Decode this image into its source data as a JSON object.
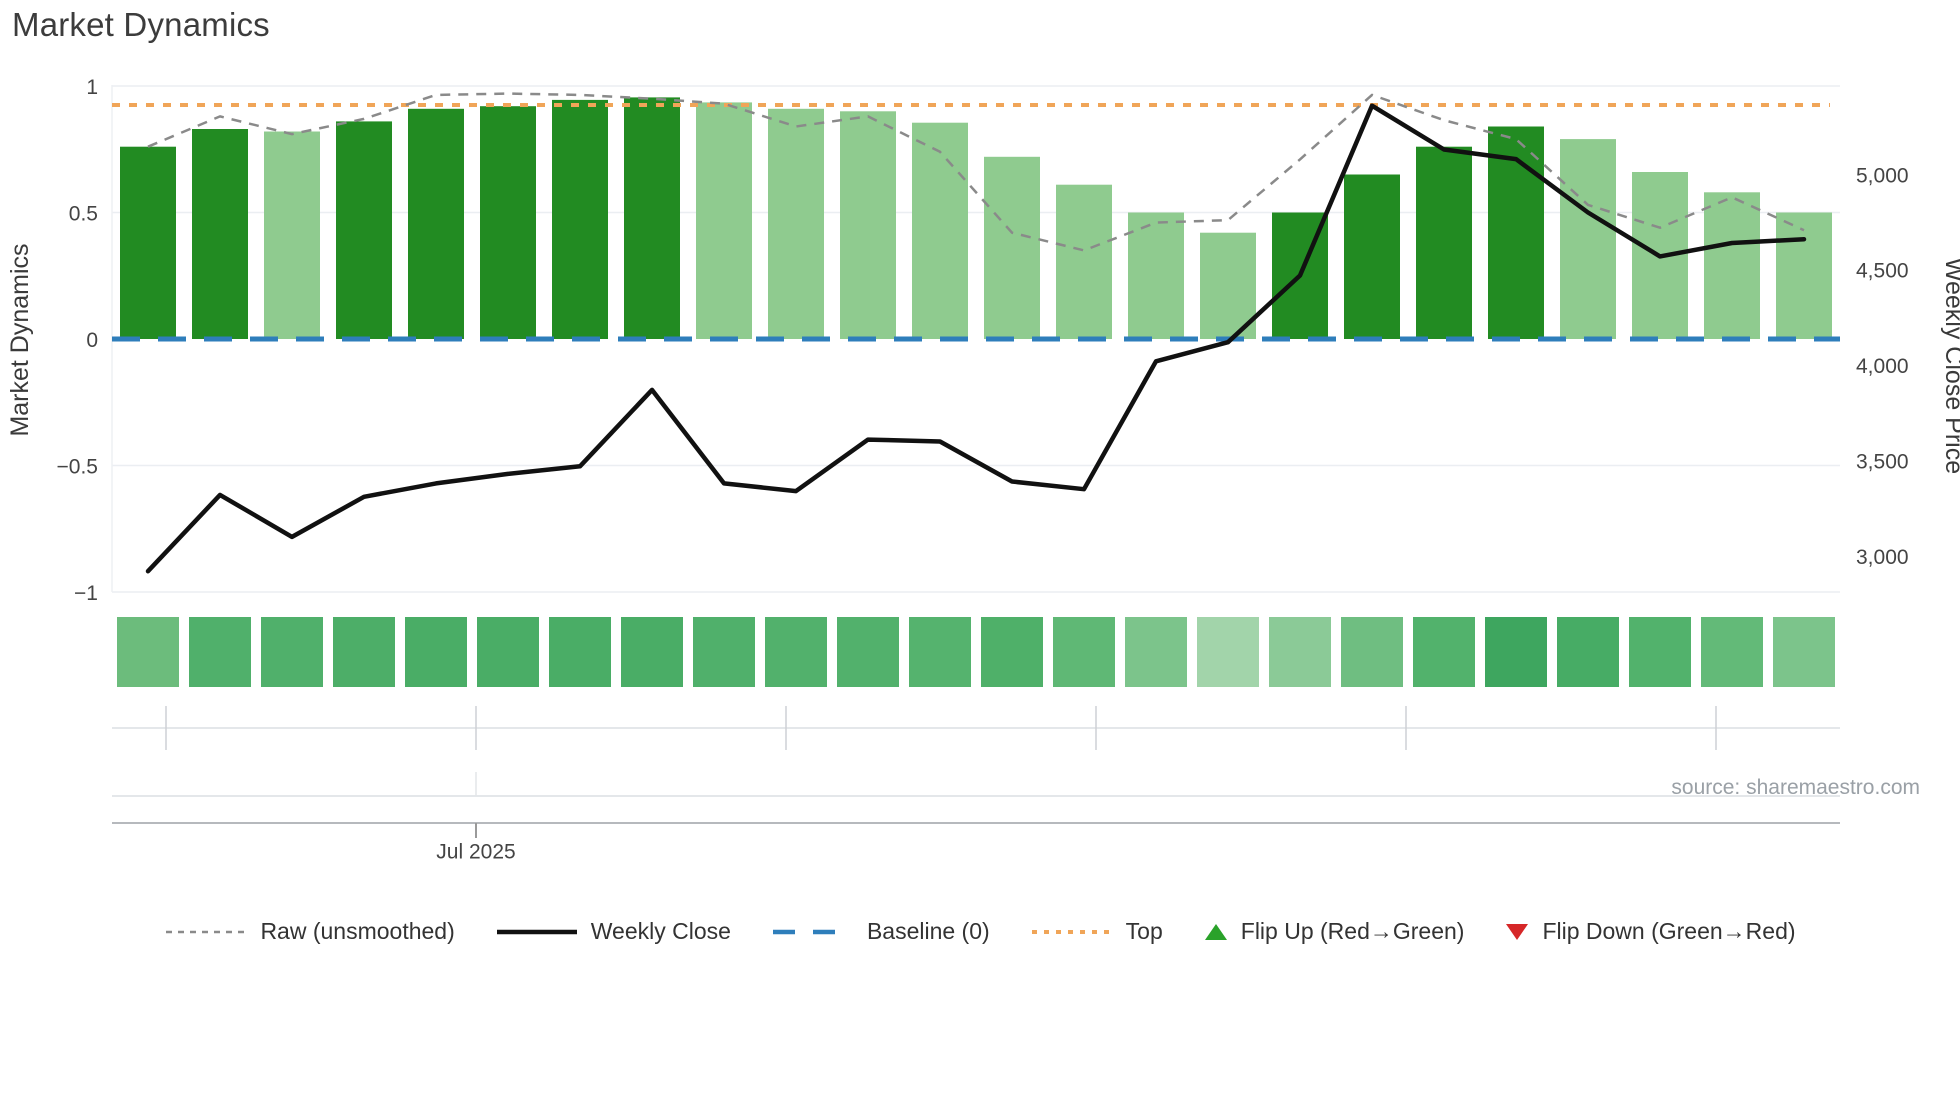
{
  "title": "Market Dynamics",
  "source": "source: sharemaestro.com",
  "x_axis": {
    "label": "Jul 2025"
  },
  "axes": {
    "left_title": "Market Dynamics",
    "right_title": "Weekly Close Price",
    "left_ticks": [
      "1",
      "0.5",
      "0",
      "−0.5",
      "−1"
    ],
    "left_tick_values": [
      1,
      0.5,
      0,
      -0.5,
      -1
    ],
    "right_ticks": [
      "5,000",
      "4,500",
      "4,000",
      "3,500",
      "3,000"
    ],
    "right_tick_values": [
      5000,
      4500,
      4000,
      3500,
      3000
    ]
  },
  "colors": {
    "bar_dark": "#228B22",
    "bar_light": "#8FCB8F",
    "raw_line": "#8a8a8a",
    "weekly_line": "#111111",
    "baseline": "#2E7EBB",
    "top_line": "#F0A558",
    "flip_up": "#2aa22a",
    "flip_down": "#d62728",
    "gridline": "#ebeef2",
    "axis_line": "#b6b9bd"
  },
  "legend": [
    {
      "label": "Raw (unsmoothed)",
      "marker": "dashed-line",
      "color": "#8a8a8a"
    },
    {
      "label": "Weekly Close",
      "marker": "solid-line",
      "color": "#111111"
    },
    {
      "label": "Baseline (0)",
      "marker": "long-dash-line",
      "color": "#2E7EBB"
    },
    {
      "label": "Top",
      "marker": "dotted-line",
      "color": "#F0A558"
    },
    {
      "label": "Flip Up (Red→Green)",
      "marker": "triangle-up",
      "color": "#2aa22a"
    },
    {
      "label": "Flip Down (Green→Red)",
      "marker": "triangle-down",
      "color": "#d62728"
    }
  ],
  "chart_data": {
    "type": "bar+line",
    "title": "Market Dynamics",
    "xlabel": "Jul 2025",
    "ylabel_left": "Market Dynamics",
    "ylabel_right": "Weekly Close Price",
    "left_ylim": [
      -1,
      1
    ],
    "right_axis_ticks": [
      3000,
      3500,
      4000,
      4500,
      5000
    ],
    "n_points": 24,
    "bars": [
      0.76,
      0.83,
      0.82,
      0.86,
      0.91,
      0.92,
      0.945,
      0.955,
      0.935,
      0.91,
      0.9,
      0.855,
      0.72,
      0.61,
      0.5,
      0.42,
      0.5,
      0.65,
      0.76,
      0.84,
      0.79,
      0.66,
      0.58,
      0.5
    ],
    "bar_shades": [
      "dark",
      "dark",
      "light",
      "dark",
      "dark",
      "dark",
      "dark",
      "dark",
      "light",
      "light",
      "light",
      "light",
      "light",
      "light",
      "light",
      "light",
      "dark",
      "dark",
      "dark",
      "dark",
      "light",
      "light",
      "light",
      "light"
    ],
    "raw_unsmoothed": [
      0.76,
      0.88,
      0.81,
      0.87,
      0.965,
      0.97,
      0.965,
      0.95,
      0.93,
      0.84,
      0.88,
      0.74,
      0.42,
      0.35,
      0.46,
      0.47,
      0.71,
      0.965,
      0.865,
      0.79,
      0.53,
      0.44,
      0.56,
      0.43
    ],
    "weekly_close": [
      2920,
      3320,
      3100,
      3310,
      3380,
      3430,
      3470,
      3870,
      3380,
      3340,
      3610,
      3600,
      3390,
      3350,
      4020,
      4120,
      4470,
      5360,
      5130,
      5080,
      4800,
      4570,
      4640,
      4660
    ],
    "baseline": 0,
    "top_line": 0.925,
    "heatmap_strip": {
      "colors": [
        "#6cbc7c",
        "#50b06b",
        "#50b06b",
        "#4dae68",
        "#4aad66",
        "#4aad66",
        "#4aad66",
        "#4aad66",
        "#50b06b",
        "#52b16c",
        "#52b16c",
        "#55b36e",
        "#4fb069",
        "#5fb875",
        "#7cc48b",
        "#a2d4aa",
        "#8bca97",
        "#6fbe81",
        "#52b26c",
        "#3ea65f",
        "#47ac65",
        "#52b26c",
        "#63ba78",
        "#7cc48b"
      ]
    },
    "legend_position": "bottom",
    "grid": true
  }
}
